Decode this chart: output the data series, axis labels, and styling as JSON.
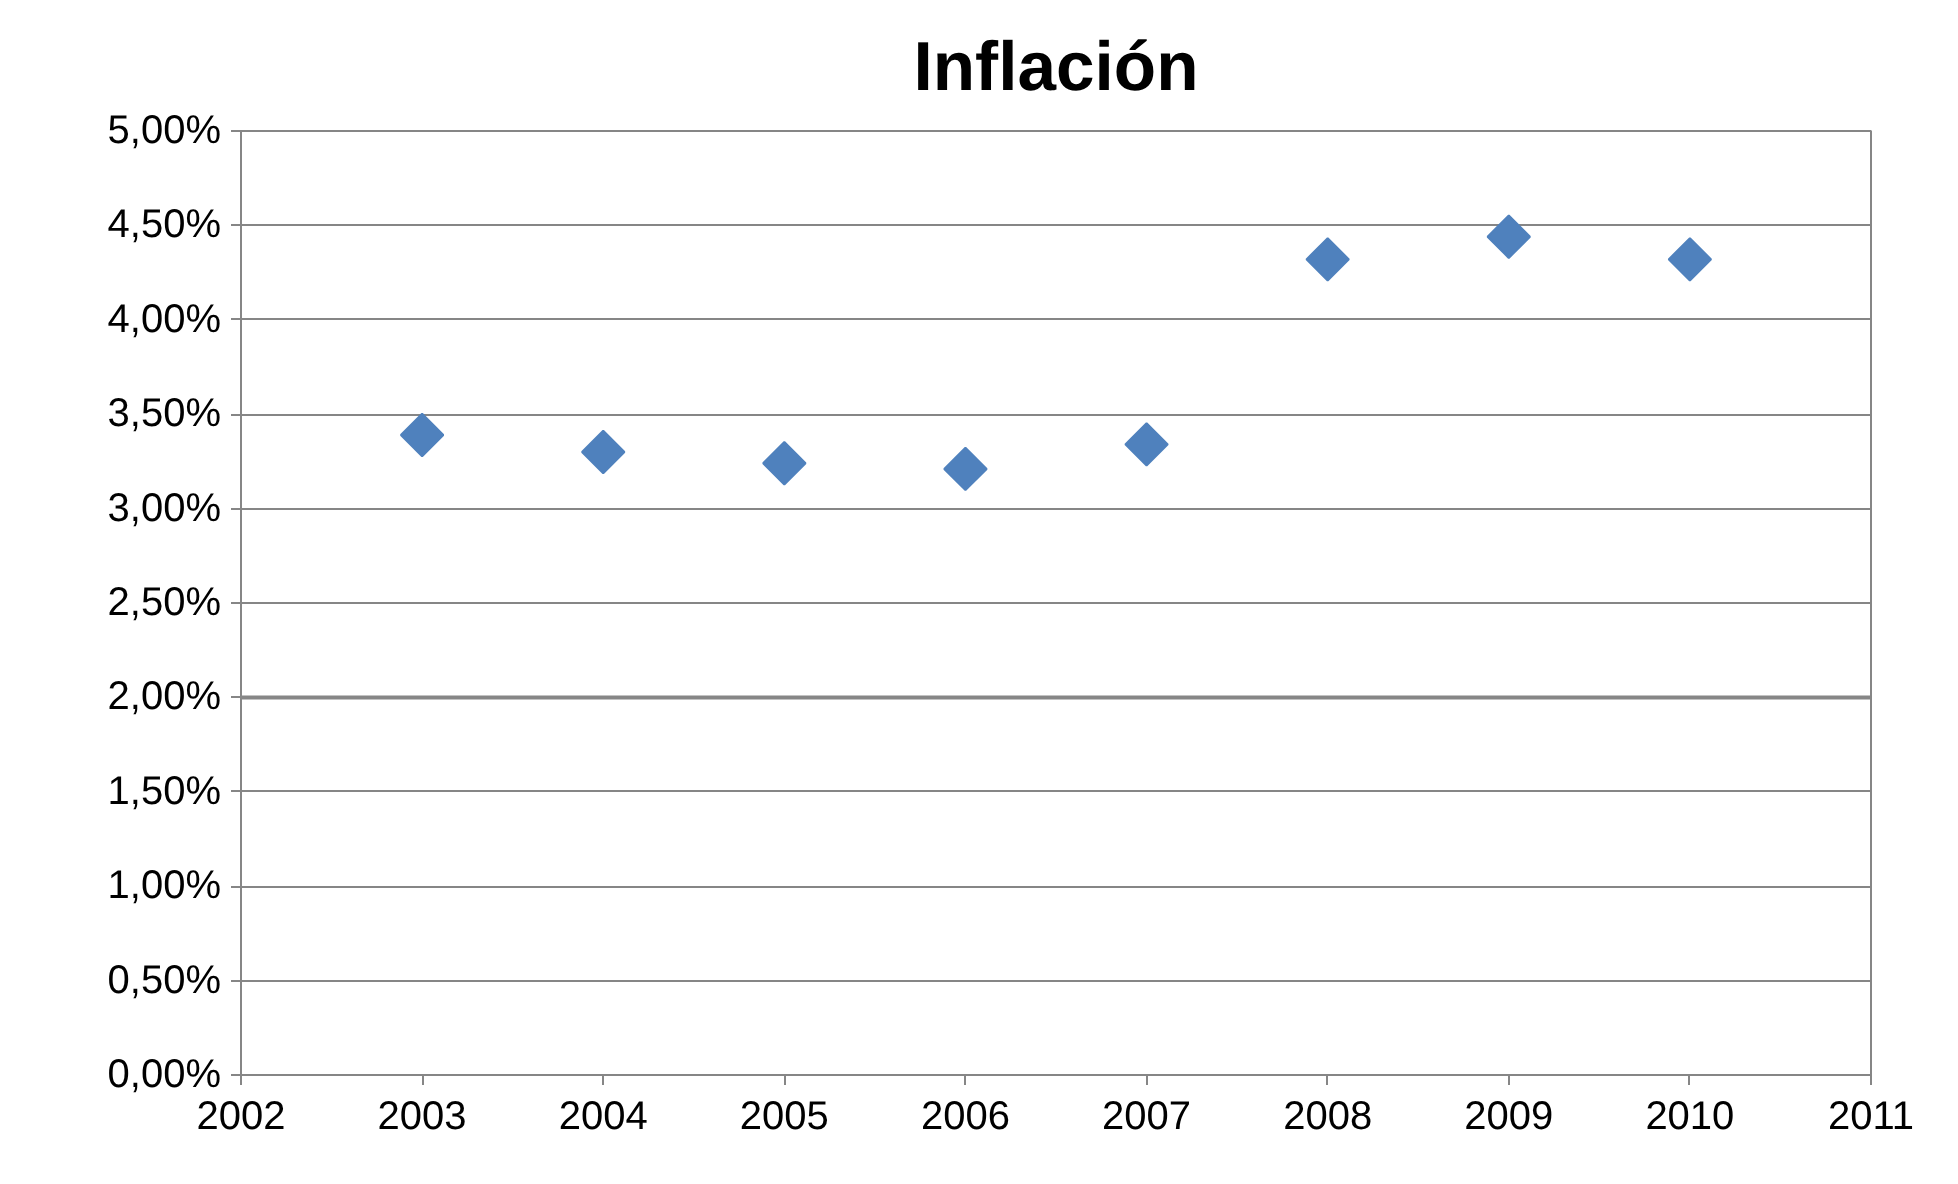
{
  "chart_data": {
    "type": "scatter",
    "title": "Inflación",
    "x": [
      2003,
      2004,
      2005,
      2006,
      2007,
      2008,
      2009,
      2010
    ],
    "series": [
      {
        "color": "#4f81bd",
        "values": [
          3.39,
          3.3,
          3.24,
          3.21,
          3.34,
          4.32,
          4.44,
          4.32
        ]
      }
    ],
    "xlim": [
      2002,
      2011
    ],
    "xticks": [
      2002,
      2003,
      2004,
      2005,
      2006,
      2007,
      2008,
      2009,
      2010,
      2011
    ],
    "ylim": [
      0,
      5
    ],
    "yticks": [
      {
        "value": 0,
        "label": "0,00%"
      },
      {
        "value": 0.5,
        "label": "0,50%"
      },
      {
        "value": 1,
        "label": "1,00%"
      },
      {
        "value": 1.5,
        "label": "1,50%"
      },
      {
        "value": 2,
        "label": "2,00%"
      },
      {
        "value": 2.5,
        "label": "2,50%"
      },
      {
        "value": 3,
        "label": "3,00%"
      },
      {
        "value": 3.5,
        "label": "3,50%"
      },
      {
        "value": 4,
        "label": "4,00%"
      },
      {
        "value": 4.5,
        "label": "4,50%"
      },
      {
        "value": 5,
        "label": "5,00%"
      }
    ],
    "ref_lines": [
      {
        "axis": "y",
        "value": 2,
        "color": "#868686"
      }
    ],
    "grid": "y",
    "marker": "diamond"
  }
}
